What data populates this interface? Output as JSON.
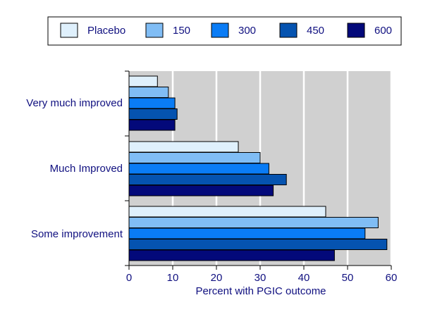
{
  "chart_data": {
    "type": "bar",
    "orientation": "horizontal",
    "title": "",
    "xlabel": "Percent with PGIC outcome",
    "ylabel": "",
    "xlim": [
      0,
      60
    ],
    "x_ticks": [
      0,
      10,
      20,
      30,
      40,
      50,
      60
    ],
    "grid": true,
    "legend_position": "top",
    "categories": [
      "Very much improved",
      "Much Improved",
      "Some improvement"
    ],
    "series": [
      {
        "name": "Placebo",
        "color": "#dff0fc",
        "values": [
          6.5,
          25,
          45
        ]
      },
      {
        "name": "150",
        "color": "#80bdf5",
        "values": [
          9,
          30,
          57
        ]
      },
      {
        "name": "300",
        "color": "#0a7cf5",
        "values": [
          10.5,
          32,
          54
        ]
      },
      {
        "name": "450",
        "color": "#0553b0",
        "values": [
          11,
          36,
          59
        ]
      },
      {
        "name": "600",
        "color": "#03097a",
        "values": [
          10.5,
          33,
          47
        ]
      }
    ]
  },
  "colors": {
    "plot_background": "#d0d0d0",
    "gridline": "#ffffff",
    "text": "#101080",
    "axis": "#000000",
    "bar_outline": "#000000"
  }
}
